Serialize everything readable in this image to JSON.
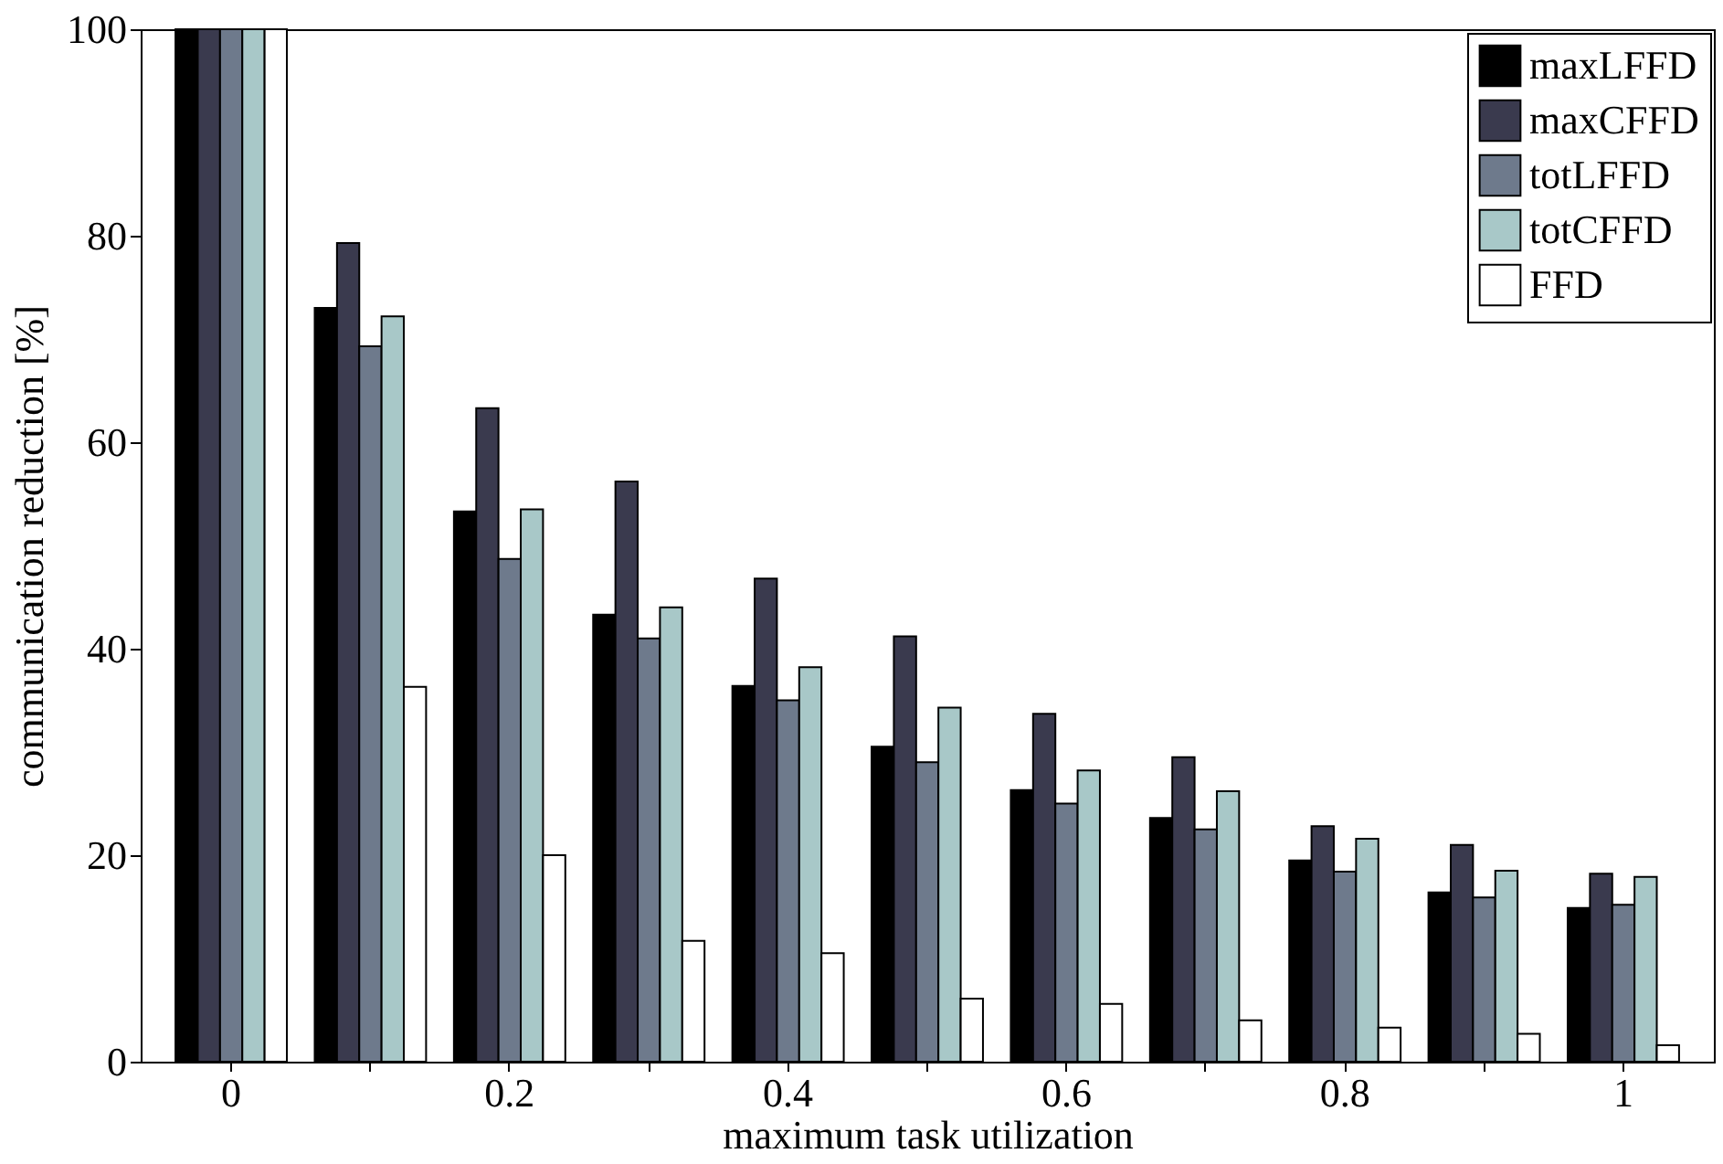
{
  "chart_data": {
    "type": "bar",
    "xlabel": "maximum task utilization",
    "ylabel": "communication reduction [%]",
    "categories": [
      "0",
      null,
      "0.2",
      null,
      "0.4",
      null,
      "0.6",
      null,
      "0.8",
      null,
      "1"
    ],
    "series": [
      {
        "name": "maxLFFD",
        "color": "#000000",
        "values": [
          100,
          73,
          53.3,
          43.3,
          36.4,
          30.5,
          26.3,
          23.6,
          19.5,
          16.4,
          14.9
        ]
      },
      {
        "name": "maxCFFD",
        "color": "#3a3a4e",
        "values": [
          100,
          79.3,
          63.3,
          56.2,
          46.8,
          41.2,
          33.7,
          29.5,
          22.8,
          21,
          18.2
        ]
      },
      {
        "name": "totLFFD",
        "color": "#6e7a8c",
        "values": [
          100,
          69.3,
          48.7,
          41,
          35,
          29,
          25,
          22.5,
          18.4,
          15.9,
          15.2
        ]
      },
      {
        "name": "totCFFD",
        "color": "#a8c8c8",
        "values": [
          100,
          72.2,
          53.5,
          44,
          38.2,
          34.3,
          28.2,
          26.2,
          21.6,
          18.5,
          17.9
        ]
      },
      {
        "name": "FFD",
        "color": "#ffffff",
        "values": [
          100,
          36.3,
          20,
          11.7,
          10.5,
          6.1,
          5.6,
          4,
          3.3,
          2.7,
          1.6
        ]
      }
    ],
    "ylim": [
      0,
      100
    ],
    "yticks": [
      0,
      20,
      40,
      60,
      80,
      100
    ],
    "grid": false,
    "legend": "top right"
  }
}
